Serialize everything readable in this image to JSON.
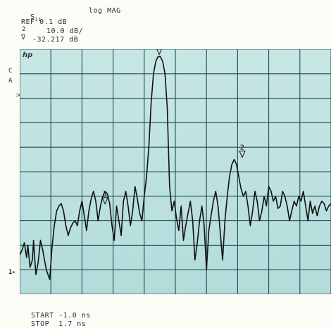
{
  "header": {
    "param_main": "S",
    "param_sub": "11",
    "format": "log MAG",
    "ref_line": "REF 0.1 dB",
    "scale_marker": "2",
    "scale_line": "10.0 dB/",
    "marker_value": "-32.217 dB"
  },
  "screen": {
    "logo": "hp",
    "left_labels": [
      "C",
      "A"
    ],
    "ref_position_label": "1"
  },
  "footer": {
    "start_label": "START",
    "start_value": "-1.0 ns",
    "stop_label": "STOP",
    "stop_value": "1.7 ns"
  },
  "chart_data": {
    "type": "line",
    "title": "",
    "xlabel": "",
    "ylabel": "",
    "x_unit": "ns",
    "y_unit": "dB",
    "xlim": [
      -1.0,
      1.7
    ],
    "ylim": [
      -100,
      0
    ],
    "grid": true,
    "grid_divisions": {
      "x": 10,
      "y": 10
    },
    "reference_level_db": -80,
    "series": [
      {
        "x": [
          -1.0,
          -0.98,
          -0.96,
          -0.94,
          -0.93,
          -0.91,
          -0.89,
          -0.88,
          -0.86,
          -0.84,
          -0.82,
          -0.8,
          -0.77,
          -0.74,
          -0.72,
          -0.7,
          -0.68,
          -0.66,
          -0.64,
          -0.62,
          -0.6,
          -0.58,
          -0.56,
          -0.54,
          -0.52,
          -0.5,
          -0.48,
          -0.46,
          -0.44,
          -0.42,
          -0.4,
          -0.38,
          -0.36,
          -0.34,
          -0.32,
          -0.3,
          -0.28,
          -0.26,
          -0.24,
          -0.22,
          -0.2,
          -0.18,
          -0.16,
          -0.14,
          -0.12,
          -0.1,
          -0.08,
          -0.06,
          -0.04,
          -0.02,
          0.0,
          0.02,
          0.04,
          0.06,
          0.08,
          0.1,
          0.12,
          0.14,
          0.16,
          0.18,
          0.2,
          0.22,
          0.24,
          0.26,
          0.28,
          0.3,
          0.32,
          0.34,
          0.36,
          0.38,
          0.4,
          0.42,
          0.44,
          0.46,
          0.48,
          0.5,
          0.52,
          0.54,
          0.56,
          0.58,
          0.6,
          0.62,
          0.64,
          0.66,
          0.68,
          0.7,
          0.72,
          0.74,
          0.76,
          0.78,
          0.8,
          0.82,
          0.84,
          0.86,
          0.88,
          0.9,
          0.92,
          0.94,
          0.96,
          0.98,
          1.0,
          1.02,
          1.04,
          1.06,
          1.08,
          1.1,
          1.12,
          1.14,
          1.16,
          1.18,
          1.2,
          1.22,
          1.24,
          1.26,
          1.28,
          1.3,
          1.32,
          1.34,
          1.36,
          1.38,
          1.4,
          1.42,
          1.44,
          1.46,
          1.48,
          1.5,
          1.52,
          1.54,
          1.56,
          1.58,
          1.6,
          1.62,
          1.64,
          1.66,
          1.68,
          1.7
        ],
        "y": [
          -84,
          -82,
          -79,
          -85,
          -80,
          -89,
          -86,
          -78,
          -92,
          -87,
          -78,
          -82,
          -90,
          -94,
          -81,
          -72,
          -66,
          -64,
          -63,
          -66,
          -72,
          -76,
          -73,
          -71,
          -70,
          -72,
          -66,
          -62,
          -68,
          -74,
          -66,
          -61,
          -58,
          -62,
          -70,
          -64,
          -60,
          -58,
          -59,
          -63,
          -72,
          -78,
          -64,
          -70,
          -76,
          -62,
          -58,
          -64,
          -72,
          -66,
          -56,
          -61,
          -67,
          -70,
          -60,
          -52,
          -40,
          -22,
          -10,
          -5,
          -3,
          -3,
          -5,
          -10,
          -24,
          -56,
          -66,
          -62,
          -69,
          -74,
          -64,
          -78,
          -72,
          -67,
          -62,
          -70,
          -86,
          -79,
          -70,
          -64,
          -72,
          -90,
          -74,
          -68,
          -62,
          -58,
          -64,
          -75,
          -86,
          -70,
          -60,
          -52,
          -47,
          -45,
          -47,
          -52,
          -57,
          -60,
          -58,
          -64,
          -72,
          -66,
          -58,
          -62,
          -70,
          -66,
          -60,
          -64,
          -56,
          -58,
          -62,
          -60,
          -65,
          -64,
          -58,
          -60,
          -64,
          -70,
          -66,
          -62,
          -64,
          -60,
          -62,
          -58,
          -64,
          -70,
          -62,
          -67,
          -64,
          -68,
          -64,
          -62,
          -63,
          -66,
          -64,
          -63
        ]
      }
    ],
    "markers": [
      {
        "label": "1",
        "x": -0.26,
        "y": -64
      },
      {
        "label": "2",
        "x": 0.93,
        "y": -45
      },
      {
        "label": "3",
        "x": 0.21,
        "y": -3
      }
    ]
  }
}
